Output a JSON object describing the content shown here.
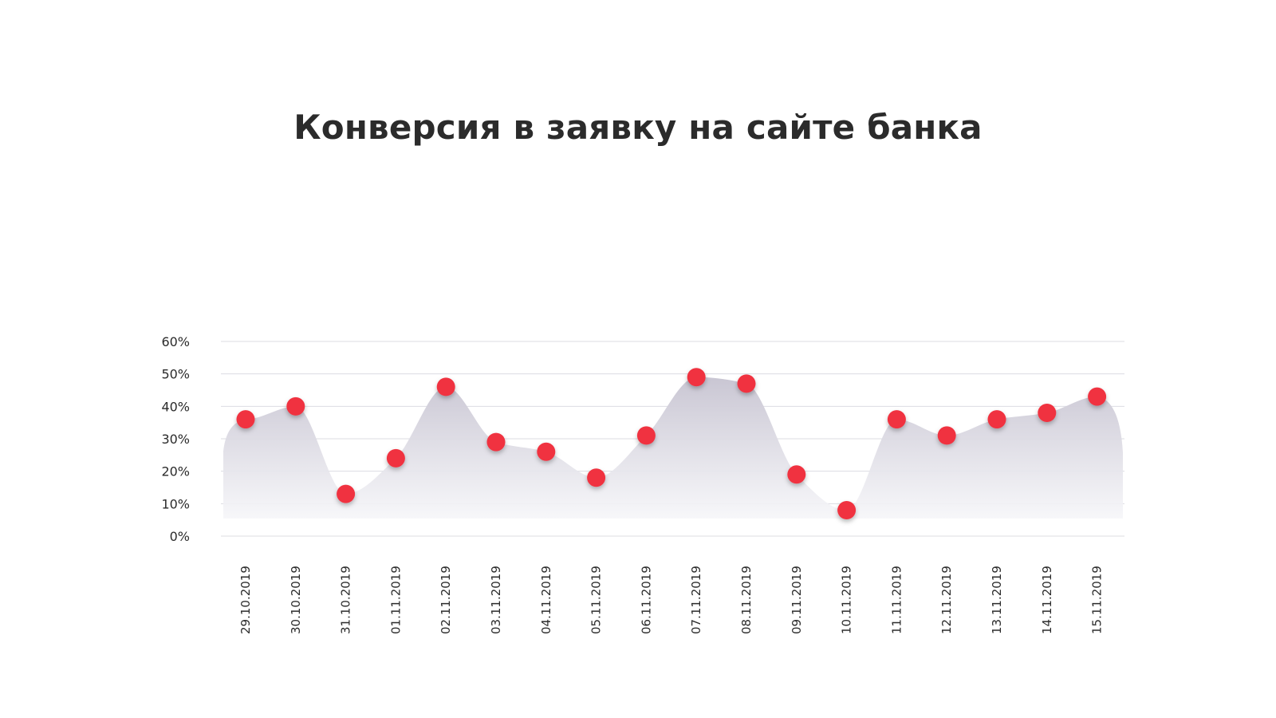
{
  "chart_data": {
    "type": "area",
    "title": "Конверсия в заявку на сайте банка",
    "xlabel": "",
    "ylabel": "",
    "ylim": [
      0,
      60
    ],
    "yticks": [
      "0%",
      "10%",
      "20%",
      "30%",
      "40%",
      "50%",
      "60%"
    ],
    "grid": true,
    "categories": [
      "29.10.2019",
      "30.10.2019",
      "31.10.2019",
      "01.11.2019",
      "02.11.2019",
      "03.11.2019",
      "04.11.2019",
      "05.11.2019",
      "06.11.2019",
      "07.11.2019",
      "08.11.2019",
      "09.11.2019",
      "10.11.2019",
      "11.11.2019",
      "12.11.2019",
      "13.11.2019",
      "14.11.2019",
      "15.11.2019"
    ],
    "values": [
      36,
      40,
      13,
      24,
      46,
      29,
      26,
      18,
      31,
      49,
      47,
      19,
      8,
      36,
      31,
      36,
      38,
      43
    ],
    "colors": {
      "marker": "#f0323f",
      "area_top": "#c9c6d3",
      "area_bottom": "#f6f6f9",
      "text": "#2b2b2b",
      "grid": "#dcdce2"
    }
  }
}
